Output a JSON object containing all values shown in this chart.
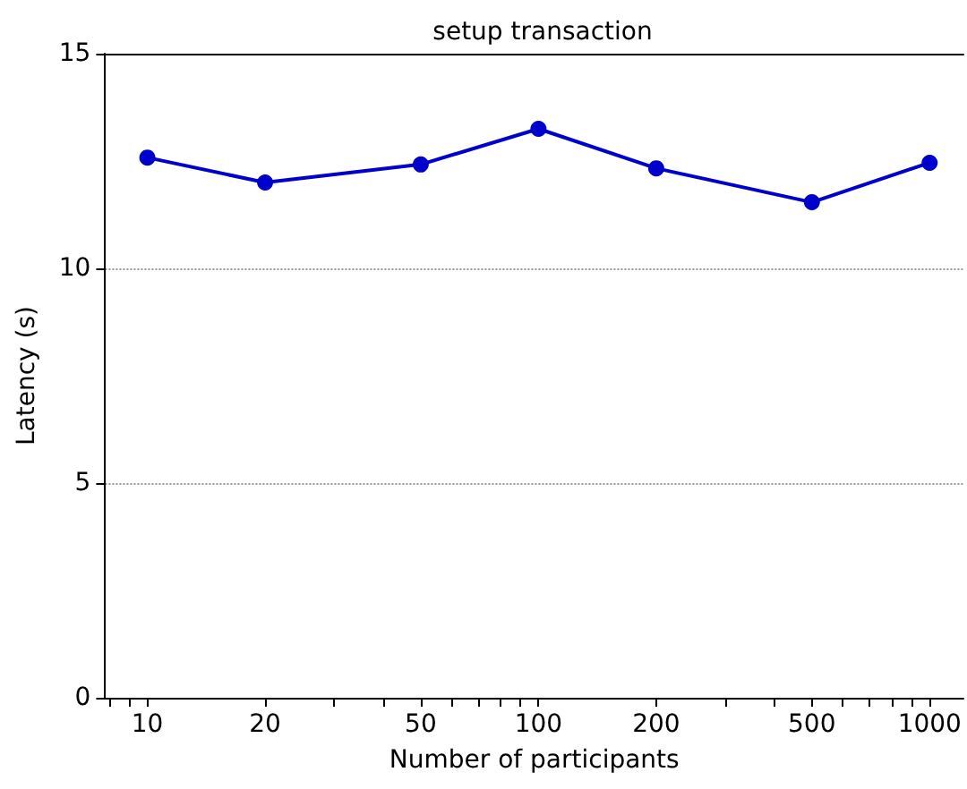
{
  "chart_data": {
    "type": "line",
    "title": "setup transaction",
    "xlabel": "Number of participants",
    "ylabel": "Latency (s)",
    "x": [
      10,
      20,
      50,
      100,
      200,
      500,
      1000
    ],
    "series": [
      {
        "color": "#0000cc",
        "values": [
          12.58,
          12.0,
          12.42,
          13.25,
          12.33,
          11.54,
          12.46
        ]
      }
    ],
    "log": "x",
    "xlim": [
      7.8,
      1220
    ],
    "xticks": [
      {
        "value": 8,
        "label": null
      },
      {
        "value": 9,
        "label": null
      },
      10,
      20,
      {
        "value": 30,
        "label": null
      },
      {
        "value": 40,
        "label": null
      },
      50,
      {
        "value": 60,
        "label": null
      },
      {
        "value": 70,
        "label": null
      },
      {
        "value": 80,
        "label": null
      },
      {
        "value": 90,
        "label": null
      },
      100,
      200,
      {
        "value": 300,
        "label": null
      },
      {
        "value": 400,
        "label": null
      },
      500,
      {
        "value": 600,
        "label": null
      },
      {
        "value": 700,
        "label": null
      },
      {
        "value": 800,
        "label": null
      },
      {
        "value": 900,
        "label": null
      },
      1000
    ],
    "ylim": [
      0,
      15
    ],
    "yticks": [
      0,
      5,
      10,
      15
    ],
    "grid": "y",
    "marker": "circle",
    "line_style": "solid"
  }
}
